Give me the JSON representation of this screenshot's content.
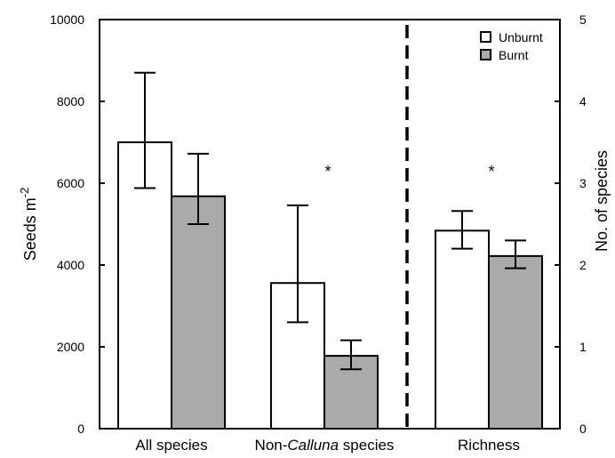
{
  "chart_data": {
    "type": "bar",
    "categories": [
      "All species",
      "Non-Calluna species",
      "Richness"
    ],
    "category_label_parts": [
      [
        {
          "text": "All species",
          "italic": false
        }
      ],
      [
        {
          "text": "Non-",
          "italic": false
        },
        {
          "text": "Calluna",
          "italic": true
        },
        {
          "text": " species",
          "italic": false
        }
      ],
      [
        {
          "text": "Richness",
          "italic": false
        }
      ]
    ],
    "series": [
      {
        "name": "Unburnt",
        "color": "#ffffff",
        "values": [
          7000,
          3560,
          2.42
        ],
        "error_low": [
          5880,
          2600,
          2.2
        ],
        "error_high": [
          8700,
          5460,
          2.66
        ]
      },
      {
        "name": "Burnt",
        "color": "#aaaaaa",
        "values": [
          5680,
          1780,
          2.11
        ],
        "error_low": [
          5000,
          1450,
          1.96
        ],
        "error_high": [
          6720,
          2160,
          2.3
        ]
      }
    ],
    "axis_assignment": [
      "left",
      "left",
      "right"
    ],
    "left_axis": {
      "label_main": "Seeds m",
      "label_sup": "-2",
      "range": [
        0,
        10000
      ],
      "ticks": [
        "0",
        "2000",
        "4000",
        "6000",
        "8000",
        "10000"
      ]
    },
    "right_axis": {
      "label": "No. of species",
      "range": [
        0,
        5
      ],
      "ticks": [
        "0",
        "1",
        "2",
        "3",
        "4",
        "5"
      ]
    },
    "significance_markers": [
      {
        "category_index": 1,
        "text": "*",
        "value": 6500
      },
      {
        "category_index": 2,
        "text": "*",
        "value": 6500
      }
    ],
    "separator": {
      "style": "dashed",
      "between_categories": [
        1,
        2
      ]
    },
    "legend_position": "top-right",
    "grid": false
  }
}
